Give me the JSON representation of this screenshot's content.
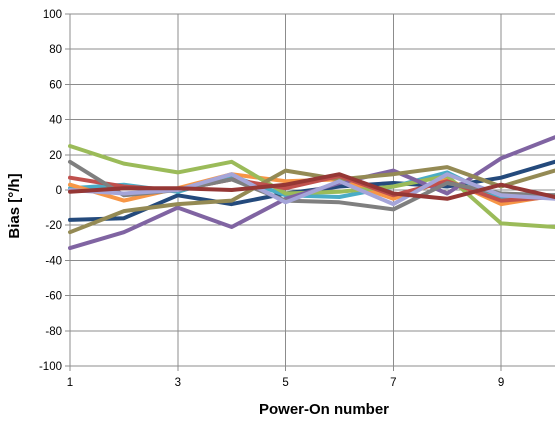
{
  "chart_data": {
    "type": "line",
    "title": "",
    "xlabel": "Power-On number",
    "ylabel": "Bias [°/h]",
    "xlim": [
      1,
      10
    ],
    "ylim": [
      -100,
      100
    ],
    "x_ticks": [
      1,
      3,
      5,
      7,
      9
    ],
    "y_ticks": [
      100,
      80,
      60,
      40,
      20,
      0,
      -20,
      -40,
      -60,
      -80,
      -100
    ],
    "grid": true,
    "legend": "none",
    "x": [
      1,
      2,
      3,
      4,
      5,
      6,
      7,
      8,
      9,
      10
    ],
    "series": [
      {
        "color": "#244a7c",
        "values": [
          -17,
          -16,
          -3,
          -8,
          -2,
          2,
          4,
          2,
          7,
          16
        ]
      },
      {
        "color": "#4aacc6",
        "values": [
          1,
          3,
          -1,
          8,
          -3,
          -4,
          2,
          10,
          -5,
          -3
        ]
      },
      {
        "color": "#f79646",
        "values": [
          3,
          -6,
          1,
          9,
          5,
          6,
          -5,
          6,
          -8,
          -3
        ]
      },
      {
        "color": "#9bbb59",
        "values": [
          25,
          15,
          10,
          16,
          -2,
          -1,
          2,
          8,
          -19,
          -21
        ]
      },
      {
        "color": "#8064a2",
        "values": [
          -33,
          -24,
          -10,
          -21,
          -5,
          4,
          11,
          -2,
          18,
          30
        ]
      },
      {
        "color": "#948a54",
        "values": [
          -24,
          -12,
          -8,
          -6,
          11,
          6,
          9,
          13,
          2,
          11
        ]
      },
      {
        "color": "#c0504d",
        "values": [
          7,
          2,
          0,
          6,
          1,
          8,
          -3,
          5,
          -6,
          -4
        ]
      },
      {
        "color": "#7f7f7f",
        "values": [
          16,
          -3,
          0,
          6,
          -6,
          -7,
          -11,
          4,
          -2,
          -3
        ]
      },
      {
        "color": "#a5a5d9",
        "values": [
          0,
          -2,
          0,
          9,
          -7,
          5,
          -8,
          9,
          -3,
          -5
        ]
      },
      {
        "color": "#953735",
        "values": [
          -1,
          1,
          1,
          0,
          3,
          9,
          -2,
          -5,
          3,
          -4
        ]
      }
    ]
  }
}
